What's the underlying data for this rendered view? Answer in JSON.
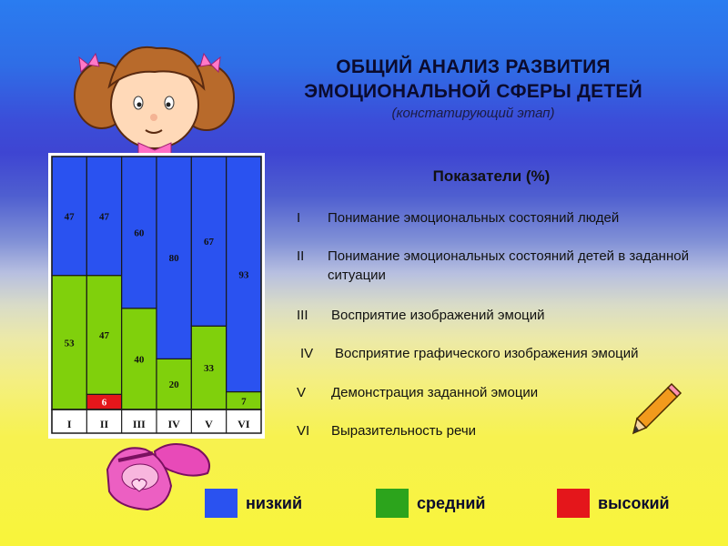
{
  "header": {
    "title_line1": "ОБЩИЙ АНАЛИЗ РАЗВИТИЯ",
    "title_line2": "ЭМОЦИОНАЛЬНОЙ СФЕРЫ ДЕТЕЙ",
    "subtitle": "(констатирующий этап)"
  },
  "indicators": {
    "title": "Показатели (%)",
    "items": [
      {
        "num": "I",
        "text": "Понимание эмоциональных состояний людей"
      },
      {
        "num": "II",
        "text": "Понимание эмоциональных состояний детей в заданной ситуации"
      },
      {
        "num": "III",
        "text": "Восприятие изображений эмоций"
      },
      {
        "num": "IV",
        "text": "Восприятие графического изображения эмоций"
      },
      {
        "num": "V",
        "text": "Демонстрация заданной эмоции"
      },
      {
        "num": "VI",
        "text": "Выразительность речи"
      }
    ]
  },
  "legend": [
    {
      "label": "низкий",
      "color": "#2a52f0"
    },
    {
      "label": "средний",
      "color": "#2ca41c"
    },
    {
      "label": "высокий",
      "color": "#e4161b"
    }
  ],
  "chart_data": {
    "type": "bar",
    "stacked": true,
    "categories": [
      "I",
      "II",
      "III",
      "IV",
      "V",
      "VI"
    ],
    "ylim": [
      0,
      100
    ],
    "series": [
      {
        "name": "высокий",
        "color": "#e4161b",
        "values": [
          0,
          6,
          0,
          0,
          0,
          0
        ],
        "labels": [
          "",
          "6",
          "",
          "",
          "",
          ""
        ]
      },
      {
        "name": "средний",
        "color": "#80d00c",
        "values": [
          53,
          47,
          40,
          20,
          33,
          7
        ],
        "labels": [
          "53",
          "47",
          "40",
          "20",
          "33",
          "7"
        ]
      },
      {
        "name": "низкий",
        "color": "#2a52f0",
        "values": [
          47,
          47,
          60,
          80,
          67,
          93
        ],
        "labels": [
          "47",
          "47",
          "60",
          "80",
          "67",
          "93"
        ]
      }
    ]
  }
}
